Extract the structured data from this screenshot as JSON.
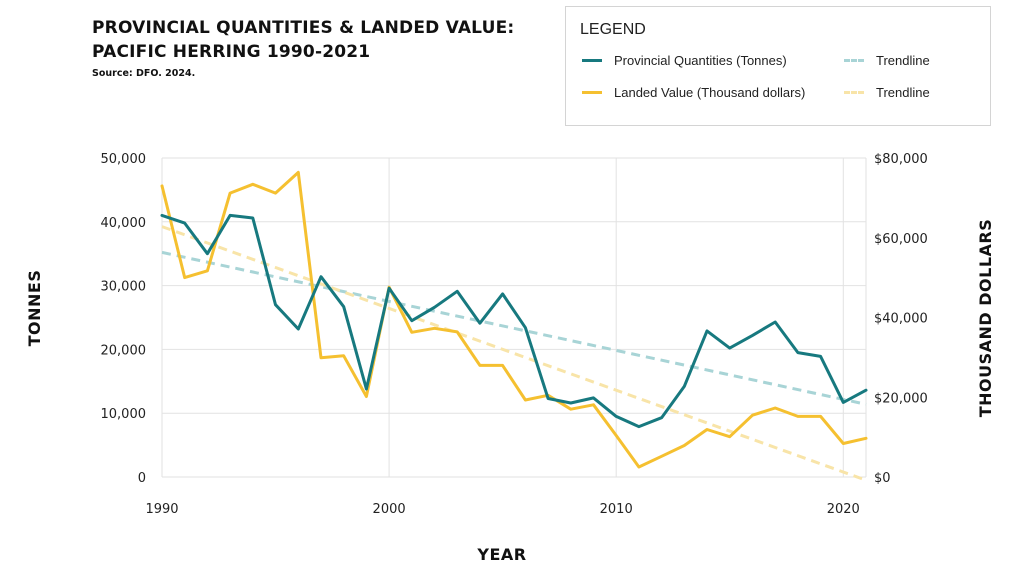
{
  "header": {
    "title_line1": "PROVINCIAL QUANTITIES & LANDED VALUE:",
    "title_line2": "PACIFIC HERRING 1990-2021",
    "source": "Source: DFO. 2024."
  },
  "legend": {
    "title": "LEGEND",
    "items": [
      {
        "label": "Provincial Quantities (Tonnes)",
        "color": "#17797f",
        "style": "solid"
      },
      {
        "label": "Trendline",
        "color": "#a8d4d6",
        "style": "dashed"
      },
      {
        "label": "Landed Value (Thousand dollars)",
        "color": "#f5c030",
        "style": "solid"
      },
      {
        "label": "Trendline",
        "color": "#f8e4a8",
        "style": "dashed"
      }
    ]
  },
  "chart_data": {
    "type": "line",
    "x": [
      1990,
      1991,
      1992,
      1993,
      1994,
      1995,
      1996,
      1997,
      1998,
      1999,
      2000,
      2001,
      2002,
      2003,
      2004,
      2005,
      2006,
      2007,
      2008,
      2009,
      2010,
      2011,
      2012,
      2013,
      2014,
      2015,
      2016,
      2017,
      2018,
      2019,
      2020,
      2021
    ],
    "xlabel": "YEAR",
    "xlim": [
      1990,
      2021
    ],
    "xticks": [
      1990,
      2000,
      2010,
      2020
    ],
    "xtick_labels": [
      "1990",
      "2000",
      "2010",
      "2020"
    ],
    "y_left": {
      "label": "TONNES",
      "lim": [
        0,
        50000
      ],
      "ticks": [
        0,
        10000,
        20000,
        30000,
        40000,
        50000
      ],
      "tick_labels": [
        "0",
        "10,000",
        "20,000",
        "30,000",
        "40,000",
        "50,000"
      ]
    },
    "y_right": {
      "label": "THOUSAND DOLLARS",
      "lim": [
        0,
        80000
      ],
      "ticks": [
        0,
        20000,
        40000,
        60000,
        80000
      ],
      "tick_labels": [
        "$0",
        "$20,000",
        "$40,000",
        "$60,000",
        "$80,000"
      ]
    },
    "grid": true,
    "legend_position": "top-right",
    "series": [
      {
        "name": "Provincial Quantities (Tonnes)",
        "axis": "left",
        "color": "#17797f",
        "style": "solid",
        "values": [
          41000,
          39800,
          35000,
          41000,
          40600,
          27000,
          23200,
          31400,
          26700,
          13800,
          29600,
          24500,
          26600,
          29100,
          24100,
          28700,
          23400,
          12300,
          11600,
          12400,
          9500,
          7900,
          9300,
          14200,
          22900,
          20200,
          22200,
          24300,
          19500,
          18900,
          11700,
          13600
        ]
      },
      {
        "name": "Trendline",
        "axis": "left",
        "color": "#a8d4d6",
        "style": "dashed",
        "points": [
          [
            1990,
            35200
          ],
          [
            2021,
            11400
          ]
        ]
      },
      {
        "name": "Landed Value (Thousand dollars)",
        "axis": "right",
        "color": "#f5c030",
        "style": "solid",
        "values": [
          73000,
          50000,
          51700,
          71200,
          73400,
          71200,
          76400,
          29900,
          30400,
          20200,
          47600,
          36300,
          37300,
          36400,
          28000,
          28000,
          19300,
          20500,
          17000,
          18100,
          10400,
          2500,
          5200,
          7900,
          11900,
          10100,
          15500,
          17300,
          15200,
          15200,
          8400,
          9700
        ]
      },
      {
        "name": "Trendline",
        "axis": "right",
        "color": "#f8e4a8",
        "style": "dashed",
        "points": [
          [
            1990,
            62800
          ],
          [
            2021,
            -800
          ]
        ]
      }
    ]
  }
}
